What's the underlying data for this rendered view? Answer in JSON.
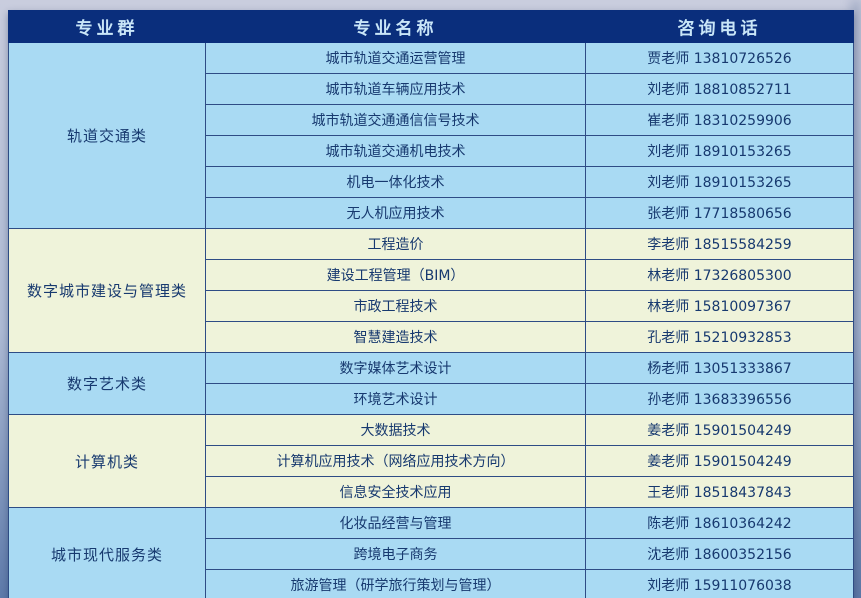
{
  "table": {
    "headers": [
      "专业群",
      "专业名称",
      "咨询电话"
    ],
    "groups": [
      {
        "name": "轨道交通类",
        "tone": "blue",
        "rows": [
          {
            "major": "城市轨道交通运营管理",
            "contact": "贾老师 13810726526"
          },
          {
            "major": "城市轨道车辆应用技术",
            "contact": "刘老师 18810852711"
          },
          {
            "major": "城市轨道交通通信信号技术",
            "contact": "崔老师 18310259906"
          },
          {
            "major": "城市轨道交通机电技术",
            "contact": "刘老师 18910153265"
          },
          {
            "major": "机电一体化技术",
            "contact": "刘老师 18910153265"
          },
          {
            "major": "无人机应用技术",
            "contact": "张老师 17718580656"
          }
        ]
      },
      {
        "name": "数字城市建设与管理类",
        "tone": "cream",
        "rows": [
          {
            "major": "工程造价",
            "contact": "李老师 18515584259"
          },
          {
            "major": "建设工程管理（BIM）",
            "contact": "林老师 17326805300"
          },
          {
            "major": "市政工程技术",
            "contact": "林老师 15810097367"
          },
          {
            "major": "智慧建造技术",
            "contact": "孔老师 15210932853"
          }
        ]
      },
      {
        "name": "数字艺术类",
        "tone": "blue",
        "rows": [
          {
            "major": "数字媒体艺术设计",
            "contact": "杨老师 13051333867"
          },
          {
            "major": "环境艺术设计",
            "contact": "孙老师 13683396556"
          }
        ]
      },
      {
        "name": "计算机类",
        "tone": "cream",
        "rows": [
          {
            "major": "大数据技术",
            "contact": "姜老师 15901504249"
          },
          {
            "major": "计算机应用技术（网络应用技术方向）",
            "contact": "姜老师 15901504249"
          },
          {
            "major": "信息安全技术应用",
            "contact": "王老师 18518437843"
          }
        ]
      },
      {
        "name": "城市现代服务类",
        "tone": "blue",
        "rows": [
          {
            "major": "化妆品经营与管理",
            "contact": "陈老师 18610364242"
          },
          {
            "major": "跨境电子商务",
            "contact": "沈老师 18600352156"
          },
          {
            "major": "旅游管理（研学旅行策划与管理）",
            "contact": "刘老师 15911076038"
          }
        ]
      }
    ]
  },
  "colors": {
    "header_bg": "#0a2e7c",
    "header_text": "#c9e6f8",
    "row_blue": "#a9daf3",
    "row_cream": "#eff3da",
    "grid": "#2e4c85",
    "text": "#17396f",
    "page_bg_top": "#c9cdde",
    "page_bg_bottom": "#5e7bab"
  }
}
